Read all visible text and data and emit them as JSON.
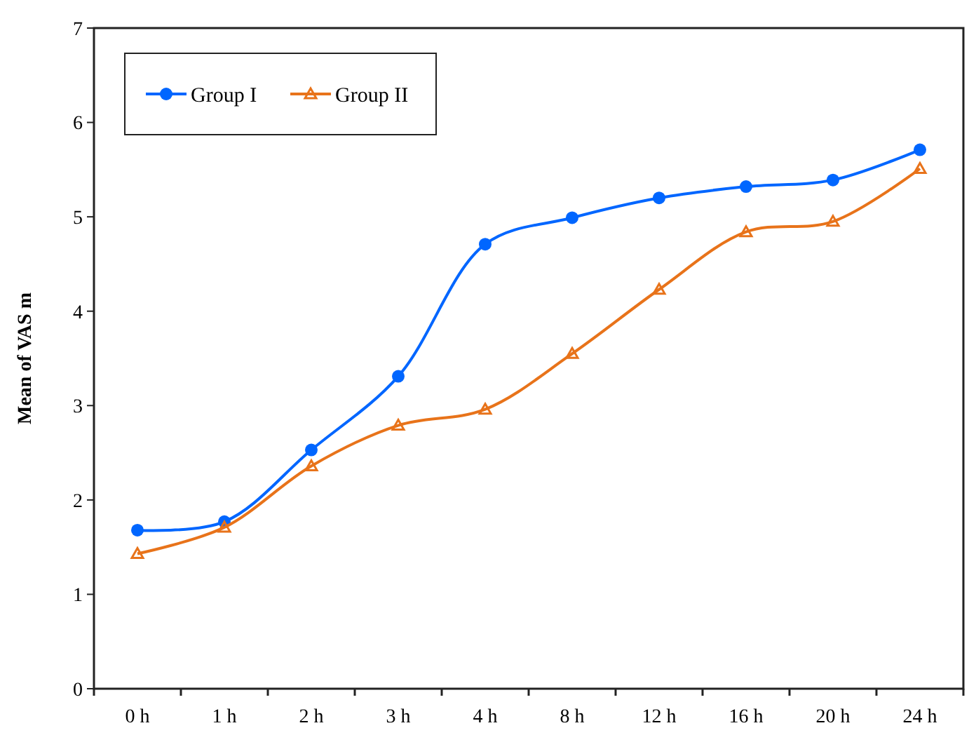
{
  "chart_data": {
    "type": "line",
    "ylabel": "Mean of VAS m",
    "categories": [
      "0 h",
      "1 h",
      "2 h",
      "3 h",
      "4 h",
      "8 h",
      "12 h",
      "16 h",
      "20 h",
      "24 h"
    ],
    "ylim": [
      0,
      7
    ],
    "yticks": [
      0,
      1,
      2,
      3,
      4,
      5,
      6,
      7
    ],
    "grid": false,
    "legend": "top left",
    "series": [
      {
        "name": "Group I",
        "color": "#0066ff",
        "marker": "circle",
        "values": [
          1.68,
          1.77,
          2.53,
          3.31,
          4.71,
          4.99,
          5.2,
          5.32,
          5.39,
          5.71
        ]
      },
      {
        "name": "Group II",
        "color": "#e8731a",
        "marker": "triangle",
        "values": [
          1.43,
          1.71,
          2.36,
          2.79,
          2.96,
          3.55,
          4.23,
          4.84,
          4.95,
          5.51
        ]
      }
    ]
  }
}
